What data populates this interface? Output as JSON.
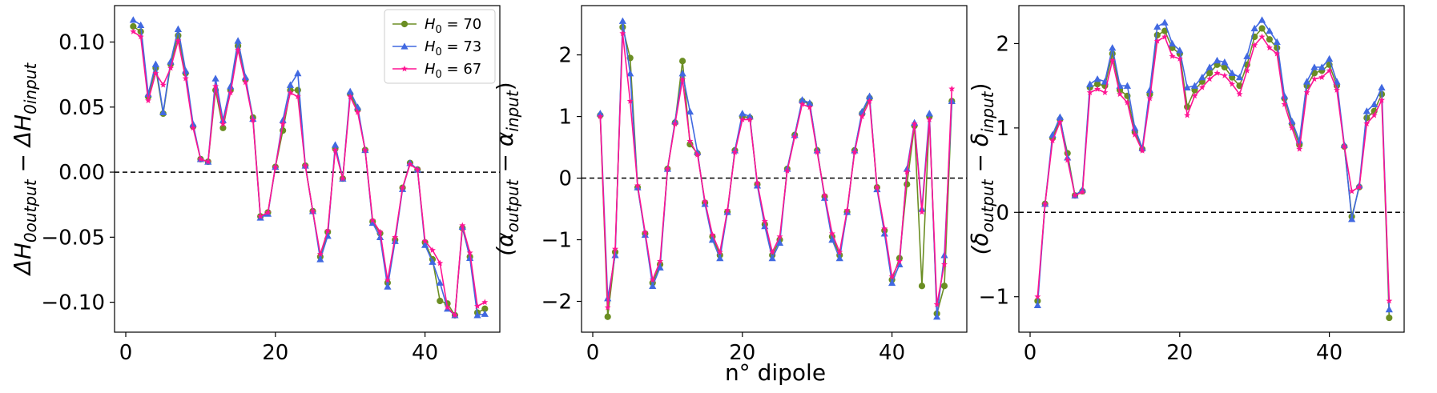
{
  "colors": {
    "H0_70": "#6b8e23",
    "H0_73": "#4169e1",
    "H0_67": "#ff1493",
    "zero_line": "#000000"
  },
  "legend": {
    "items": [
      {
        "label": "H",
        "sub": "0",
        "rest": " = 70",
        "color": "#6b8e23",
        "marker": "circle"
      },
      {
        "label": "H",
        "sub": "0",
        "rest": " = 73",
        "color": "#4169e1",
        "marker": "triangle"
      },
      {
        "label": "H",
        "sub": "0",
        "rest": " = 67",
        "color": "#ff1493",
        "marker": "star"
      }
    ]
  },
  "shared_xlabel": "n° dipole",
  "chart_data": [
    {
      "type": "line",
      "ylabel": {
        "pre": "ΔH",
        "sub1": "0output",
        "mid": " − ΔH",
        "sub2": "0input"
      },
      "xlim": [
        -1.5,
        50
      ],
      "ylim": [
        -0.123,
        0.128
      ],
      "xticks": [
        0,
        20,
        40
      ],
      "xtick_labels": [
        "0",
        "20",
        "40"
      ],
      "yticks": [
        -0.1,
        -0.05,
        0.0,
        0.05,
        0.1
      ],
      "ytick_labels": [
        "−0.10",
        "−0.05",
        "0.00",
        "0.05",
        "0.10"
      ],
      "hline": 0,
      "x": [
        1,
        2,
        3,
        4,
        5,
        6,
        7,
        8,
        9,
        10,
        11,
        12,
        13,
        14,
        15,
        16,
        17,
        18,
        19,
        20,
        21,
        22,
        23,
        24,
        25,
        26,
        27,
        28,
        29,
        30,
        31,
        32,
        33,
        34,
        35,
        36,
        37,
        38,
        39,
        40,
        41,
        42,
        43,
        44,
        45,
        46,
        47,
        48
      ],
      "series": [
        {
          "name": "H0 = 70",
          "key": "H0_70",
          "values": [
            0.112,
            0.108,
            0.058,
            0.08,
            0.045,
            0.083,
            0.105,
            0.076,
            0.035,
            0.01,
            0.008,
            0.063,
            0.034,
            0.063,
            0.097,
            0.071,
            0.042,
            -0.034,
            -0.031,
            0.004,
            0.032,
            0.063,
            0.063,
            0.005,
            -0.03,
            -0.065,
            -0.046,
            0.018,
            -0.005,
            0.06,
            0.048,
            0.017,
            -0.038,
            -0.047,
            -0.085,
            -0.052,
            -0.012,
            0.007,
            0.002,
            -0.054,
            -0.067,
            -0.099,
            -0.101,
            -0.11,
            -0.043,
            -0.065,
            -0.108,
            -0.105
          ]
        },
        {
          "name": "H0 = 73",
          "key": "H0_73",
          "values": [
            0.117,
            0.113,
            0.06,
            0.083,
            0.046,
            0.085,
            0.11,
            0.078,
            0.037,
            0.01,
            0.008,
            0.072,
            0.04,
            0.066,
            0.101,
            0.073,
            0.041,
            -0.035,
            -0.032,
            0.004,
            0.04,
            0.067,
            0.076,
            0.005,
            -0.03,
            -0.067,
            -0.049,
            0.021,
            -0.005,
            0.062,
            0.05,
            0.017,
            -0.039,
            -0.05,
            -0.088,
            -0.053,
            -0.013,
            0.007,
            0.002,
            -0.056,
            -0.069,
            -0.085,
            -0.105,
            -0.11,
            -0.042,
            -0.066,
            -0.11,
            -0.109
          ]
        },
        {
          "name": "H0 = 67",
          "key": "H0_67",
          "values": [
            0.108,
            0.104,
            0.055,
            0.076,
            0.067,
            0.08,
            0.101,
            0.072,
            0.034,
            0.01,
            0.008,
            0.066,
            0.037,
            0.061,
            0.094,
            0.069,
            0.04,
            -0.034,
            -0.031,
            0.004,
            0.037,
            0.061,
            0.058,
            0.005,
            -0.03,
            -0.063,
            -0.045,
            0.017,
            -0.005,
            0.058,
            0.046,
            0.017,
            -0.037,
            -0.046,
            -0.083,
            -0.05,
            -0.012,
            0.006,
            0.002,
            -0.053,
            -0.06,
            -0.07,
            -0.104,
            -0.11,
            -0.041,
            -0.062,
            -0.103,
            -0.1
          ]
        }
      ]
    },
    {
      "type": "line",
      "ylabel": {
        "pre": "(α",
        "sub1": "output",
        "mid": " − α",
        "sub2": "input",
        "post": ")"
      },
      "xlim": [
        -1.5,
        50
      ],
      "ylim": [
        -2.5,
        2.8
      ],
      "xticks": [
        0,
        20,
        40
      ],
      "xtick_labels": [
        "0",
        "20",
        "40"
      ],
      "yticks": [
        -2,
        -1,
        0,
        1,
        2
      ],
      "ytick_labels": [
        "−2",
        "−1",
        "0",
        "1",
        "2"
      ],
      "hline": 0,
      "x": [
        1,
        2,
        3,
        4,
        5,
        6,
        7,
        8,
        9,
        10,
        11,
        12,
        13,
        14,
        15,
        16,
        17,
        18,
        19,
        20,
        21,
        22,
        23,
        24,
        25,
        26,
        27,
        28,
        29,
        30,
        31,
        32,
        33,
        34,
        35,
        36,
        37,
        38,
        39,
        40,
        41,
        42,
        43,
        44,
        45,
        46,
        47,
        48
      ],
      "series": [
        {
          "name": "H0 = 70",
          "key": "H0_70",
          "values": [
            1.02,
            -2.25,
            -1.2,
            2.45,
            1.95,
            -0.15,
            -0.9,
            -1.7,
            -1.4,
            0.15,
            0.9,
            1.9,
            0.55,
            0.4,
            -0.4,
            -0.95,
            -1.25,
            -0.55,
            0.45,
            1.0,
            0.98,
            -0.1,
            -0.75,
            -1.25,
            -1.0,
            0.15,
            0.7,
            1.25,
            1.2,
            0.45,
            -0.3,
            -0.95,
            -1.25,
            -0.55,
            0.45,
            1.05,
            1.3,
            -0.15,
            -0.85,
            -1.65,
            -1.3,
            -0.1,
            0.85,
            -1.75,
            1.0,
            -2.2,
            -1.75,
            1.25
          ]
        },
        {
          "name": "H0 = 73",
          "key": "H0_73",
          "values": [
            1.05,
            -1.95,
            -1.25,
            2.55,
            1.7,
            -0.15,
            -0.92,
            -1.75,
            -1.45,
            0.15,
            0.92,
            1.7,
            1.08,
            0.42,
            -0.42,
            -1.0,
            -1.3,
            -0.55,
            0.45,
            1.05,
            1.0,
            -0.12,
            -0.78,
            -1.3,
            -1.05,
            0.15,
            0.7,
            1.27,
            1.22,
            0.45,
            -0.32,
            -1.0,
            -1.3,
            -0.55,
            0.45,
            1.08,
            1.33,
            -0.18,
            -0.9,
            -1.7,
            -1.4,
            0.15,
            0.9,
            -0.5,
            1.05,
            -2.25,
            -1.25,
            1.25
          ]
        },
        {
          "name": "H0 = 67",
          "key": "H0_67",
          "values": [
            1.0,
            -2.1,
            -1.15,
            2.35,
            1.25,
            -0.12,
            -0.88,
            -1.65,
            -1.35,
            0.15,
            0.88,
            1.6,
            0.6,
            0.38,
            -0.38,
            -0.92,
            -1.2,
            -0.52,
            0.42,
            0.95,
            0.95,
            -0.08,
            -0.7,
            -1.2,
            -0.95,
            0.12,
            0.67,
            1.2,
            1.15,
            0.42,
            -0.28,
            -0.9,
            -1.2,
            -0.52,
            0.42,
            1.0,
            1.25,
            -0.15,
            -0.82,
            -1.6,
            -1.35,
            0.1,
            0.88,
            -0.55,
            0.95,
            -2.05,
            -1.4,
            1.45
          ]
        }
      ]
    },
    {
      "type": "line",
      "ylabel": {
        "pre": "(δ",
        "sub1": "output",
        "mid": " − δ",
        "sub2": "input",
        "post": ")"
      },
      "xlim": [
        -1.5,
        50
      ],
      "ylim": [
        -1.42,
        2.45
      ],
      "xticks": [
        0,
        20,
        40
      ],
      "xtick_labels": [
        "0",
        "20",
        "40"
      ],
      "yticks": [
        -1,
        0,
        1,
        2
      ],
      "ytick_labels": [
        "−1",
        "0",
        "1",
        "2"
      ],
      "hline": 0,
      "x": [
        1,
        2,
        3,
        4,
        5,
        6,
        7,
        8,
        9,
        10,
        11,
        12,
        13,
        14,
        15,
        16,
        17,
        18,
        19,
        20,
        21,
        22,
        23,
        24,
        25,
        26,
        27,
        28,
        29,
        30,
        31,
        32,
        33,
        34,
        35,
        36,
        37,
        38,
        39,
        40,
        41,
        42,
        43,
        44,
        45,
        46,
        47,
        48
      ],
      "series": [
        {
          "name": "H0 = 70",
          "key": "H0_70",
          "values": [
            -1.05,
            0.1,
            0.88,
            1.1,
            0.7,
            0.2,
            0.25,
            1.48,
            1.52,
            1.5,
            1.88,
            1.45,
            1.38,
            0.95,
            0.75,
            1.4,
            2.1,
            2.15,
            1.95,
            1.88,
            1.25,
            1.45,
            1.55,
            1.65,
            1.75,
            1.72,
            1.6,
            1.5,
            1.75,
            2.08,
            2.18,
            2.05,
            1.95,
            1.35,
            1.05,
            0.8,
            1.5,
            1.65,
            1.68,
            1.75,
            1.5,
            0.78,
            -0.05,
            0.3,
            1.12,
            1.2,
            1.4,
            -1.25
          ]
        },
        {
          "name": "H0 = 73",
          "key": "H0_73",
          "values": [
            -1.1,
            0.1,
            0.92,
            1.13,
            0.65,
            0.2,
            0.27,
            1.52,
            1.58,
            1.55,
            1.95,
            1.5,
            1.5,
            1.0,
            0.76,
            1.45,
            2.2,
            2.25,
            2.0,
            1.92,
            1.48,
            1.5,
            1.6,
            1.72,
            1.8,
            1.78,
            1.65,
            1.6,
            1.85,
            2.18,
            2.28,
            2.15,
            2.02,
            1.38,
            1.08,
            0.85,
            1.55,
            1.72,
            1.72,
            1.82,
            1.55,
            0.8,
            -0.08,
            0.32,
            1.2,
            1.28,
            1.48,
            -1.15
          ]
        },
        {
          "name": "H0 = 67",
          "key": "H0_67",
          "values": [
            -1.0,
            0.1,
            0.85,
            1.07,
            0.62,
            0.2,
            0.24,
            1.42,
            1.46,
            1.42,
            1.8,
            1.4,
            1.3,
            0.92,
            0.73,
            1.35,
            2.03,
            2.08,
            1.85,
            1.82,
            1.15,
            1.38,
            1.48,
            1.58,
            1.65,
            1.62,
            1.52,
            1.4,
            1.68,
            1.98,
            2.08,
            1.95,
            1.88,
            1.28,
            1.0,
            0.75,
            1.42,
            1.58,
            1.6,
            1.68,
            1.45,
            0.78,
            0.25,
            0.3,
            1.05,
            1.15,
            1.33,
            -1.05
          ]
        }
      ]
    }
  ]
}
